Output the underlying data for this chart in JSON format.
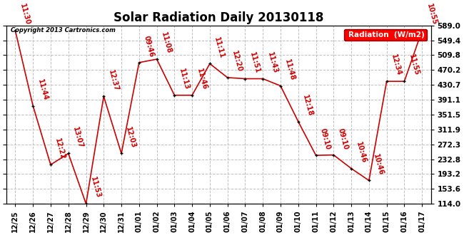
{
  "title": "Solar Radiation Daily 20130118",
  "copyright_text": "Copyright 2013 Cartronics.com",
  "legend_label": "Radiation  (W/m2)",
  "background_color": "#ffffff",
  "plot_bg_color": "#ffffff",
  "grid_color": "#c0c0c0",
  "line_color": "#cc0000",
  "label_color": "#cc0000",
  "dates": [
    "12/25",
    "12/26",
    "12/27",
    "12/28",
    "12/29",
    "12/30",
    "12/31",
    "01/01",
    "01/02",
    "01/03",
    "01/04",
    "01/05",
    "01/06",
    "01/07",
    "01/08",
    "01/09",
    "01/10",
    "01/11",
    "01/12",
    "01/13",
    "01/14",
    "01/15",
    "01/16",
    "01/17"
  ],
  "values": [
    575,
    375,
    218,
    248,
    114,
    400,
    248,
    490,
    499,
    403,
    403,
    487,
    450,
    447,
    447,
    428,
    333,
    243,
    244,
    208,
    176,
    440,
    440,
    575
  ],
  "time_labels": [
    "11:30",
    "11:44",
    "12:22",
    "13:07",
    "11:53",
    "12:37",
    "12:03",
    "09:46",
    "11:08",
    "11:13",
    "11:46",
    "11:11",
    "12:20",
    "11:51",
    "11:43",
    "11:48",
    "12:18",
    "09:10",
    "09:10",
    "10:46",
    "10:46",
    "12:34",
    "11:55",
    "10:55"
  ],
  "yticks": [
    114.0,
    153.6,
    193.2,
    232.8,
    272.3,
    311.9,
    351.5,
    391.1,
    430.7,
    470.2,
    509.8,
    549.4,
    589.0
  ],
  "title_fontsize": 12,
  "label_fontsize": 7,
  "marker_size": 12
}
